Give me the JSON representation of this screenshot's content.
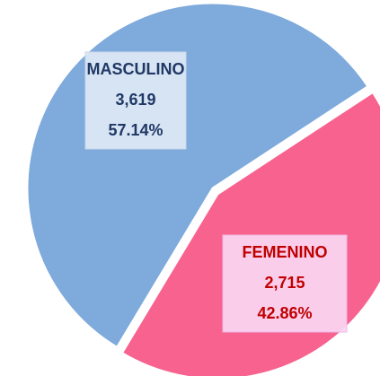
{
  "chart_data": {
    "type": "pie",
    "categories": [
      "MASCULINO",
      "FEMENINO"
    ],
    "values": [
      3619,
      2715
    ],
    "value_labels": [
      "3,619",
      "2,715"
    ],
    "percentages": [
      57.14,
      42.86
    ],
    "percentage_labels": [
      "57.14%",
      "42.86%"
    ],
    "colors": [
      "#7eaadc",
      "#f7628f"
    ],
    "label_colors": [
      "#1f3864",
      "#c00000"
    ]
  }
}
